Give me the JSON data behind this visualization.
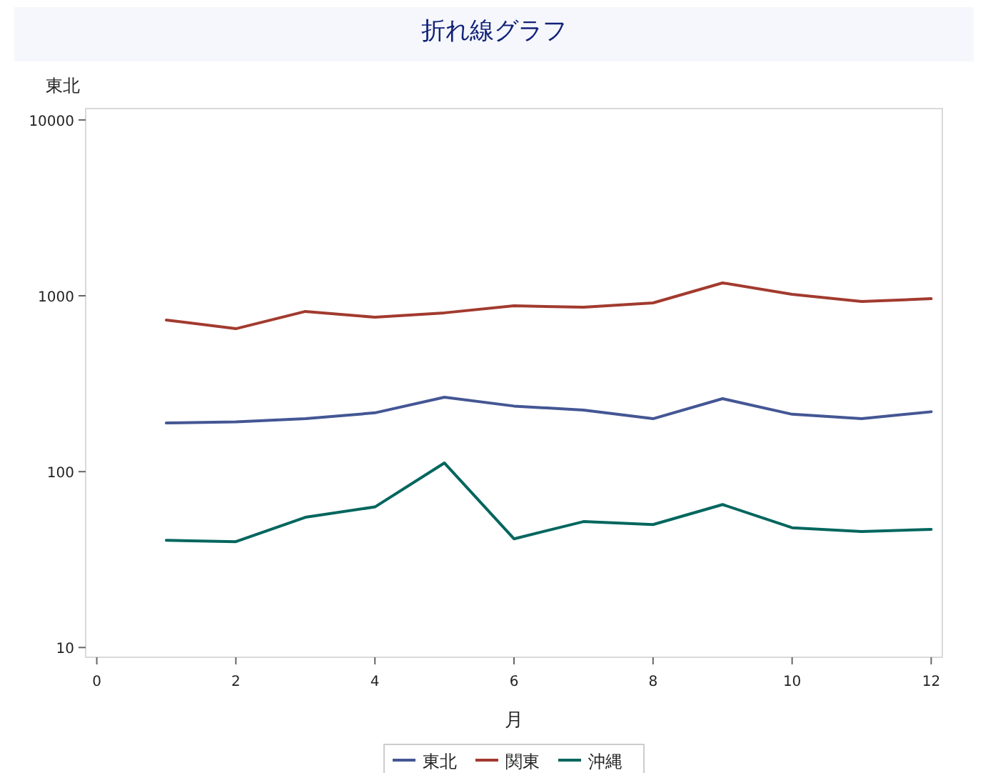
{
  "chart_data": {
    "type": "line",
    "title": "折れ線グラフ",
    "xlabel": "月",
    "ylabel": "東北",
    "log": true,
    "grid": false,
    "legend": "bottom",
    "marker": "none",
    "line_style": "solid",
    "x": [
      1,
      2,
      3,
      4,
      5,
      6,
      7,
      8,
      9,
      10,
      11,
      12
    ],
    "xlim": [
      -0.16,
      12.16
    ],
    "xticks": [
      0,
      2,
      4,
      6,
      8,
      10,
      12
    ],
    "ylim": [
      8.8,
      11600
    ],
    "yticks": [
      10,
      100,
      1000,
      10000
    ],
    "series": [
      {
        "name": "東北",
        "color": "#445694",
        "values": [
          189,
          192,
          200,
          216,
          265,
          236,
          224,
          200,
          260,
          212,
          200,
          219
        ]
      },
      {
        "name": "関東",
        "color": "#a23a2e",
        "values": [
          728,
          650,
          815,
          755,
          800,
          877,
          861,
          911,
          1184,
          1019,
          928,
          963
        ]
      },
      {
        "name": "沖縄",
        "color": "#01665e",
        "values": [
          40.7,
          40,
          55,
          63,
          112,
          41.5,
          52,
          50,
          65,
          48,
          45.6,
          47
        ]
      }
    ]
  }
}
